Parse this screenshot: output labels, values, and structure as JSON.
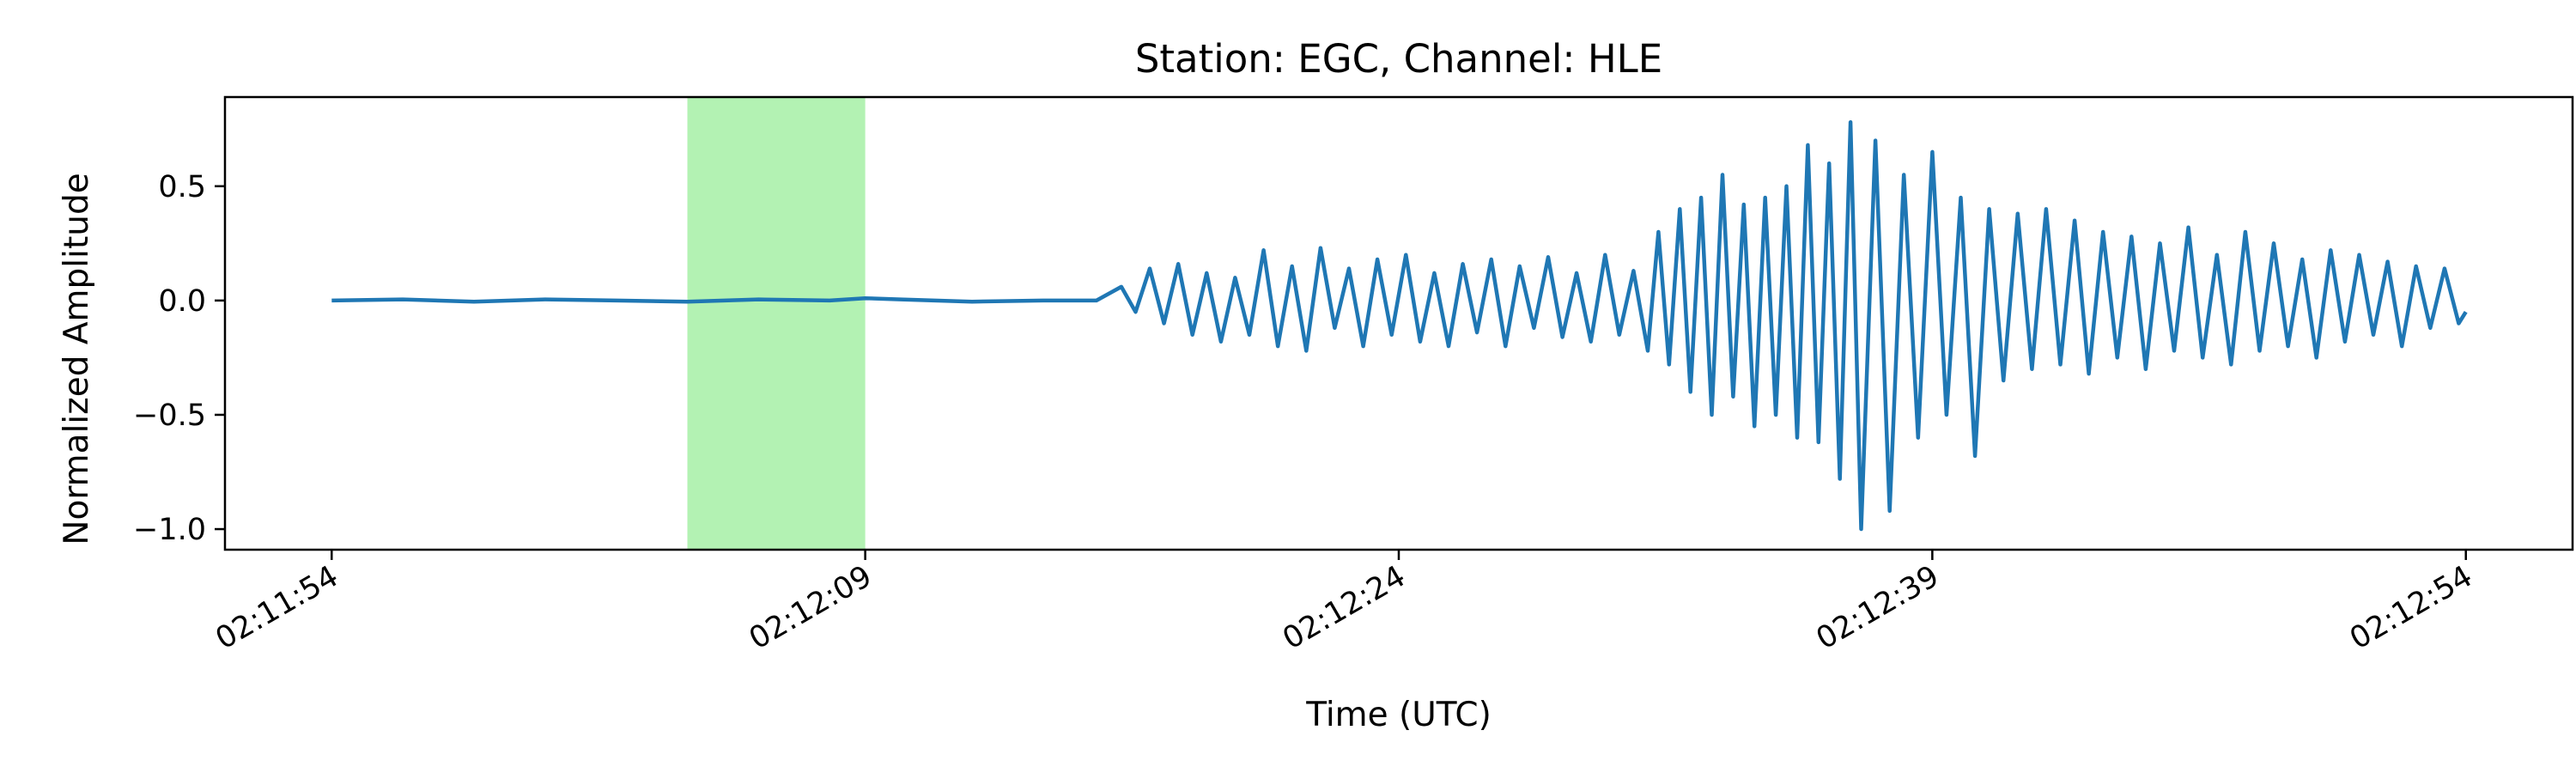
{
  "chart_data": {
    "type": "line",
    "title": "Station: EGC, Channel: HLE",
    "xlabel": "Time (UTC)",
    "ylabel": "Normalized Amplitude",
    "x_unit": "seconds",
    "x_start_time": "02:11:54",
    "xlim": [
      -3,
      63
    ],
    "ylim": [
      -1.09,
      0.89
    ],
    "x_ticks": [
      {
        "value": 0,
        "label": "02:11:54"
      },
      {
        "value": 15,
        "label": "02:12:09"
      },
      {
        "value": 30,
        "label": "02:12:24"
      },
      {
        "value": 45,
        "label": "02:12:39"
      },
      {
        "value": 60,
        "label": "02:12:54"
      }
    ],
    "y_ticks": [
      {
        "value": 0.5,
        "label": "0.5"
      },
      {
        "value": 0.0,
        "label": "0.0"
      },
      {
        "value": -0.5,
        "label": "−0.5"
      },
      {
        "value": -1.0,
        "label": "−1.0"
      }
    ],
    "x_tick_rotation_deg": 30,
    "grid": false,
    "highlight_span": {
      "x_start": 10,
      "x_end": 15,
      "color": "#b3f2b3"
    },
    "series": [
      {
        "color": "#1f77b4",
        "x": [
          0,
          2,
          4,
          6,
          8,
          10,
          12,
          14,
          15,
          16,
          18,
          20,
          21.5,
          22.2,
          22.6,
          23.0,
          23.4,
          23.8,
          24.2,
          24.6,
          25.0,
          25.4,
          25.8,
          26.2,
          26.6,
          27.0,
          27.4,
          27.8,
          28.2,
          28.6,
          29.0,
          29.4,
          29.8,
          30.2,
          30.6,
          31.0,
          31.4,
          31.8,
          32.2,
          32.6,
          33.0,
          33.4,
          33.8,
          34.2,
          34.6,
          35.0,
          35.4,
          35.8,
          36.2,
          36.6,
          37.0,
          37.3,
          37.6,
          37.9,
          38.2,
          38.5,
          38.8,
          39.1,
          39.4,
          39.7,
          40.0,
          40.3,
          40.6,
          40.9,
          41.2,
          41.5,
          41.8,
          42.1,
          42.4,
          42.7,
          43.0,
          43.4,
          43.8,
          44.2,
          44.6,
          45.0,
          45.4,
          45.8,
          46.2,
          46.6,
          47.0,
          47.4,
          47.8,
          48.2,
          48.6,
          49.0,
          49.4,
          49.8,
          50.2,
          50.6,
          51.0,
          51.4,
          51.8,
          52.2,
          52.6,
          53.0,
          53.4,
          53.8,
          54.2,
          54.6,
          55.0,
          55.4,
          55.8,
          56.2,
          56.6,
          57.0,
          57.4,
          57.8,
          58.2,
          58.6,
          59.0,
          59.4,
          59.8,
          60.0
        ],
        "y": [
          0,
          0.005,
          -0.005,
          0.005,
          0,
          -0.005,
          0.005,
          0,
          0.01,
          0.005,
          -0.005,
          0,
          0,
          0.06,
          -0.05,
          0.14,
          -0.1,
          0.16,
          -0.15,
          0.12,
          -0.18,
          0.1,
          -0.15,
          0.22,
          -0.2,
          0.15,
          -0.22,
          0.23,
          -0.12,
          0.14,
          -0.2,
          0.18,
          -0.15,
          0.2,
          -0.18,
          0.12,
          -0.2,
          0.16,
          -0.14,
          0.18,
          -0.2,
          0.15,
          -0.12,
          0.19,
          -0.16,
          0.12,
          -0.18,
          0.2,
          -0.15,
          0.13,
          -0.22,
          0.3,
          -0.28,
          0.4,
          -0.4,
          0.45,
          -0.5,
          0.55,
          -0.42,
          0.42,
          -0.55,
          0.45,
          -0.5,
          0.5,
          -0.6,
          0.68,
          -0.62,
          0.6,
          -0.78,
          0.78,
          -1.0,
          0.7,
          -0.92,
          0.55,
          -0.6,
          0.65,
          -0.5,
          0.45,
          -0.68,
          0.4,
          -0.35,
          0.38,
          -0.3,
          0.4,
          -0.28,
          0.35,
          -0.32,
          0.3,
          -0.25,
          0.28,
          -0.3,
          0.25,
          -0.22,
          0.32,
          -0.25,
          0.2,
          -0.28,
          0.3,
          -0.22,
          0.25,
          -0.2,
          0.18,
          -0.25,
          0.22,
          -0.18,
          0.2,
          -0.15,
          0.17,
          -0.2,
          0.15,
          -0.12,
          0.14,
          -0.1,
          -0.05
        ]
      }
    ]
  }
}
